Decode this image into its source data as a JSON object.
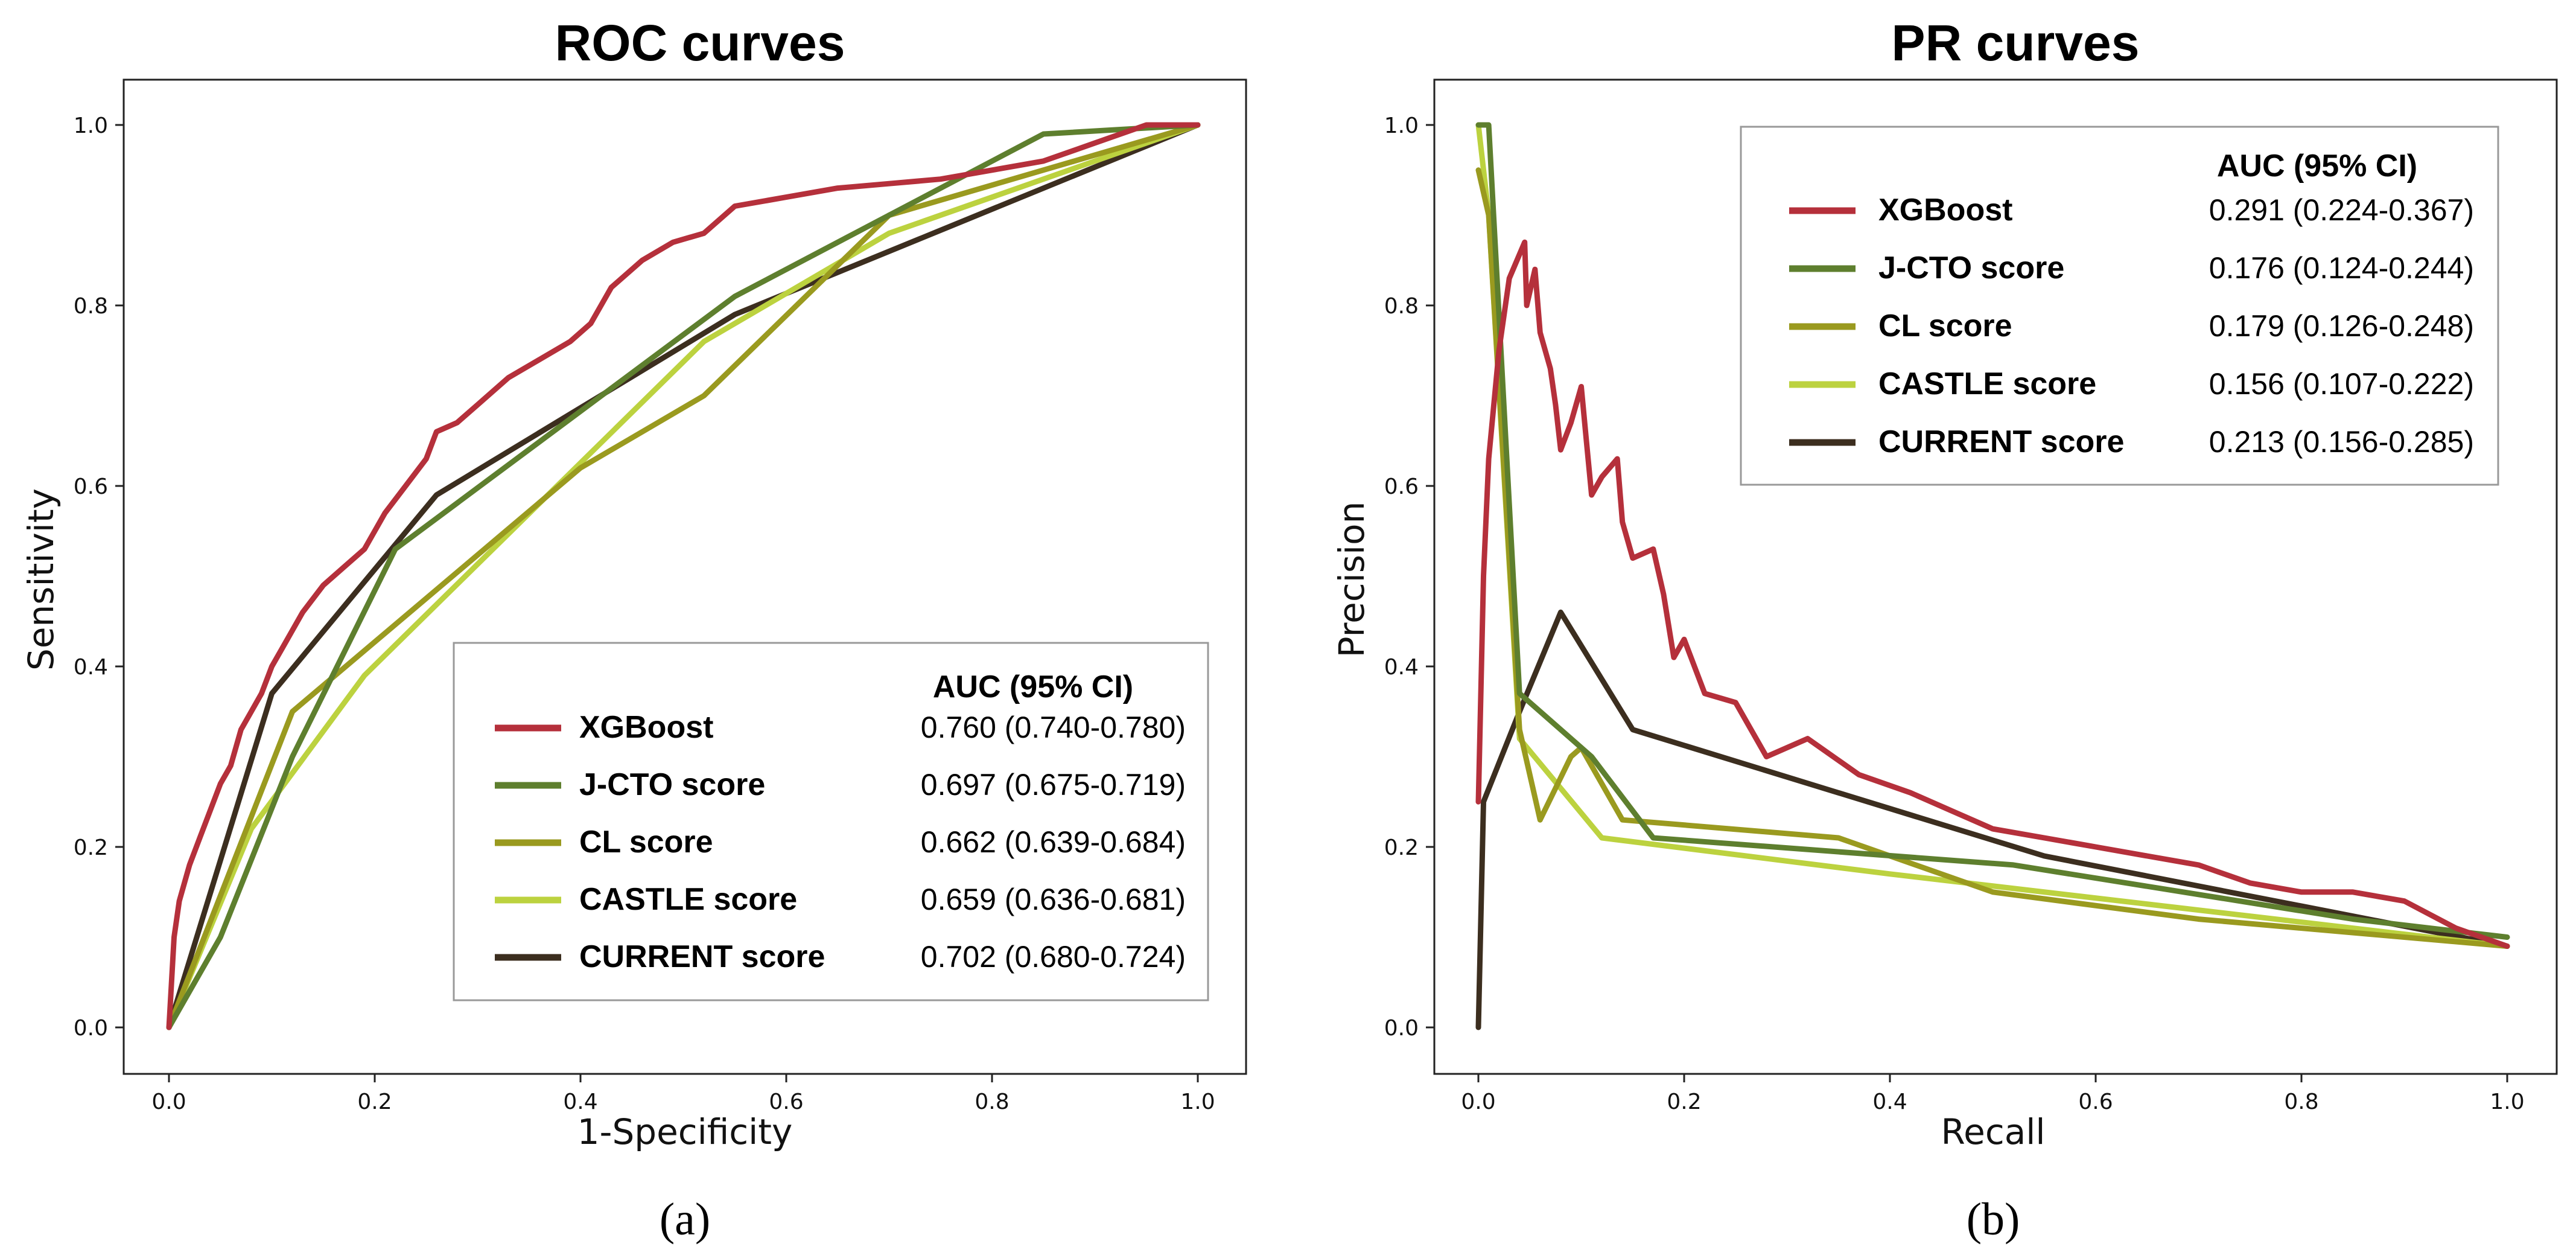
{
  "figure": {
    "caption_a": "(a)",
    "caption_b": "(b)"
  },
  "chart_data": [
    {
      "type": "line",
      "title": "ROC curves",
      "xlabel": "1-Specificity",
      "ylabel": "Sensitivity",
      "xlim": [
        0.0,
        1.0
      ],
      "ylim": [
        0.0,
        1.0
      ],
      "xticks": [
        "0.0",
        "0.2",
        "0.4",
        "0.6",
        "0.8",
        "1.0"
      ],
      "yticks": [
        "0.0",
        "0.2",
        "0.4",
        "0.6",
        "0.8",
        "1.0"
      ],
      "grid": false,
      "legend": {
        "placement": "bottom-right",
        "header": "AUC (95% CI)",
        "entries": [
          {
            "name": "XGBoost",
            "auc": "0.760 (0.740-0.780)"
          },
          {
            "name": "J-CTO score",
            "auc": "0.697 (0.675-0.719)"
          },
          {
            "name": "CL score",
            "auc": "0.662 (0.639-0.684)"
          },
          {
            "name": "CASTLE score",
            "auc": "0.659 (0.636-0.681)"
          },
          {
            "name": "CURRENT score",
            "auc": "0.702 (0.680-0.724)"
          }
        ]
      },
      "series": [
        {
          "name": "XGBoost",
          "color": "#b5303b",
          "points": [
            [
              0,
              0
            ],
            [
              0.005,
              0.1
            ],
            [
              0.01,
              0.14
            ],
            [
              0.02,
              0.18
            ],
            [
              0.03,
              0.21
            ],
            [
              0.04,
              0.24
            ],
            [
              0.05,
              0.27
            ],
            [
              0.06,
              0.29
            ],
            [
              0.07,
              0.33
            ],
            [
              0.08,
              0.35
            ],
            [
              0.09,
              0.37
            ],
            [
              0.1,
              0.4
            ],
            [
              0.11,
              0.42
            ],
            [
              0.12,
              0.44
            ],
            [
              0.13,
              0.46
            ],
            [
              0.15,
              0.49
            ],
            [
              0.17,
              0.51
            ],
            [
              0.19,
              0.53
            ],
            [
              0.21,
              0.57
            ],
            [
              0.23,
              0.6
            ],
            [
              0.25,
              0.63
            ],
            [
              0.26,
              0.66
            ],
            [
              0.28,
              0.67
            ],
            [
              0.3,
              0.69
            ],
            [
              0.33,
              0.72
            ],
            [
              0.36,
              0.74
            ],
            [
              0.39,
              0.76
            ],
            [
              0.41,
              0.78
            ],
            [
              0.43,
              0.82
            ],
            [
              0.46,
              0.85
            ],
            [
              0.49,
              0.87
            ],
            [
              0.52,
              0.88
            ],
            [
              0.55,
              0.91
            ],
            [
              0.6,
              0.92
            ],
            [
              0.65,
              0.93
            ],
            [
              0.7,
              0.935
            ],
            [
              0.75,
              0.94
            ],
            [
              0.8,
              0.95
            ],
            [
              0.85,
              0.96
            ],
            [
              0.9,
              0.98
            ],
            [
              0.95,
              1.0
            ],
            [
              1.0,
              1.0
            ]
          ]
        },
        {
          "name": "J-CTO score",
          "color": "#5e7f2e",
          "points": [
            [
              0,
              0
            ],
            [
              0.05,
              0.1
            ],
            [
              0.12,
              0.3
            ],
            [
              0.22,
              0.53
            ],
            [
              0.55,
              0.81
            ],
            [
              0.85,
              0.99
            ],
            [
              1.0,
              1.0
            ]
          ]
        },
        {
          "name": "CL score",
          "color": "#9a9a1f",
          "points": [
            [
              0,
              0
            ],
            [
              0.12,
              0.35
            ],
            [
              0.4,
              0.62
            ],
            [
              0.52,
              0.7
            ],
            [
              0.7,
              0.9
            ],
            [
              0.88,
              0.96
            ],
            [
              1.0,
              1.0
            ]
          ]
        },
        {
          "name": "CASTLE score",
          "color": "#bcd23f",
          "points": [
            [
              0,
              0
            ],
            [
              0.08,
              0.22
            ],
            [
              0.19,
              0.39
            ],
            [
              0.52,
              0.76
            ],
            [
              0.7,
              0.88
            ],
            [
              1.0,
              1.0
            ]
          ]
        },
        {
          "name": "CURRENT score",
          "color": "#3c2e1f",
          "points": [
            [
              0,
              0
            ],
            [
              0.1,
              0.37
            ],
            [
              0.26,
              0.59
            ],
            [
              0.55,
              0.79
            ],
            [
              1.0,
              1.0
            ]
          ]
        }
      ]
    },
    {
      "type": "line",
      "title": "PR curves",
      "xlabel": "Recall",
      "ylabel": "Precision",
      "xlim": [
        0.0,
        1.0
      ],
      "ylim": [
        0.0,
        1.0
      ],
      "xticks": [
        "0.0",
        "0.2",
        "0.4",
        "0.6",
        "0.8",
        "1.0"
      ],
      "yticks": [
        "0.0",
        "0.2",
        "0.4",
        "0.6",
        "0.8",
        "1.0"
      ],
      "grid": false,
      "legend": {
        "placement": "top-right",
        "header": "AUC (95% CI)",
        "entries": [
          {
            "name": "XGBoost",
            "auc": "0.291 (0.224-0.367)"
          },
          {
            "name": "J-CTO score",
            "auc": "0.176 (0.124-0.244)"
          },
          {
            "name": "CL score",
            "auc": "0.179 (0.126-0.248)"
          },
          {
            "name": "CASTLE score",
            "auc": "0.156 (0.107-0.222)"
          },
          {
            "name": "CURRENT score",
            "auc": "0.213 (0.156-0.285)"
          }
        ]
      },
      "series": [
        {
          "name": "XGBoost",
          "color": "#b5303b",
          "points": [
            [
              0,
              0.25
            ],
            [
              0.005,
              0.5
            ],
            [
              0.01,
              0.63
            ],
            [
              0.02,
              0.75
            ],
            [
              0.03,
              0.83
            ],
            [
              0.045,
              0.87
            ],
            [
              0.047,
              0.8
            ],
            [
              0.055,
              0.84
            ],
            [
              0.06,
              0.77
            ],
            [
              0.07,
              0.73
            ],
            [
              0.075,
              0.69
            ],
            [
              0.08,
              0.64
            ],
            [
              0.09,
              0.67
            ],
            [
              0.1,
              0.71
            ],
            [
              0.105,
              0.65
            ],
            [
              0.11,
              0.59
            ],
            [
              0.12,
              0.61
            ],
            [
              0.135,
              0.63
            ],
            [
              0.14,
              0.56
            ],
            [
              0.15,
              0.52
            ],
            [
              0.17,
              0.53
            ],
            [
              0.18,
              0.48
            ],
            [
              0.19,
              0.41
            ],
            [
              0.2,
              0.43
            ],
            [
              0.22,
              0.37
            ],
            [
              0.25,
              0.36
            ],
            [
              0.28,
              0.3
            ],
            [
              0.32,
              0.32
            ],
            [
              0.37,
              0.28
            ],
            [
              0.42,
              0.26
            ],
            [
              0.46,
              0.24
            ],
            [
              0.5,
              0.22
            ],
            [
              0.55,
              0.21
            ],
            [
              0.6,
              0.2
            ],
            [
              0.65,
              0.19
            ],
            [
              0.7,
              0.18
            ],
            [
              0.75,
              0.16
            ],
            [
              0.8,
              0.15
            ],
            [
              0.85,
              0.15
            ],
            [
              0.9,
              0.14
            ],
            [
              0.95,
              0.11
            ],
            [
              1.0,
              0.09
            ]
          ]
        },
        {
          "name": "J-CTO score",
          "color": "#5e7f2e",
          "points": [
            [
              0,
              1.0
            ],
            [
              0.01,
              1.0
            ],
            [
              0.04,
              0.37
            ],
            [
              0.11,
              0.3
            ],
            [
              0.17,
              0.21
            ],
            [
              0.52,
              0.18
            ],
            [
              0.85,
              0.12
            ],
            [
              1.0,
              0.1
            ]
          ]
        },
        {
          "name": "CL score",
          "color": "#9a9a1f",
          "points": [
            [
              0,
              0.95
            ],
            [
              0.01,
              0.9
            ],
            [
              0.04,
              0.33
            ],
            [
              0.06,
              0.23
            ],
            [
              0.09,
              0.3
            ],
            [
              0.1,
              0.31
            ],
            [
              0.14,
              0.23
            ],
            [
              0.35,
              0.21
            ],
            [
              0.5,
              0.15
            ],
            [
              0.7,
              0.12
            ],
            [
              1.0,
              0.09
            ]
          ]
        },
        {
          "name": "CASTLE score",
          "color": "#bcd23f",
          "points": [
            [
              0,
              1.0
            ],
            [
              0.01,
              0.9
            ],
            [
              0.04,
              0.32
            ],
            [
              0.12,
              0.21
            ],
            [
              0.4,
              0.17
            ],
            [
              1.0,
              0.09
            ]
          ]
        },
        {
          "name": "CURRENT score",
          "color": "#3c2e1f",
          "points": [
            [
              0,
              0.0
            ],
            [
              0.005,
              0.25
            ],
            [
              0.04,
              0.35
            ],
            [
              0.08,
              0.46
            ],
            [
              0.15,
              0.33
            ],
            [
              0.55,
              0.19
            ],
            [
              1.0,
              0.09
            ]
          ]
        }
      ]
    }
  ]
}
